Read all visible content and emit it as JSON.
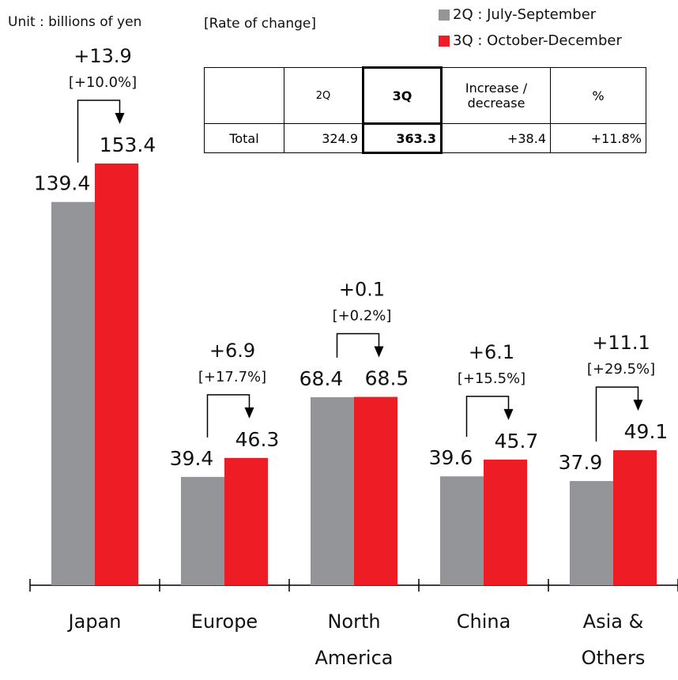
{
  "chart_data": {
    "type": "bar",
    "unit": "Unit : billions of yen",
    "rate_note": "[Rate of change]",
    "categories": [
      "Japan",
      "Europe",
      "North America",
      "China",
      "Asia & Others"
    ],
    "series": [
      {
        "name": "2Q : July-September",
        "color": "#939598",
        "values": [
          139.4,
          39.4,
          68.4,
          39.6,
          37.9
        ]
      },
      {
        "name": "3Q : October-December",
        "color": "#ee1c25",
        "values": [
          153.4,
          46.3,
          68.5,
          45.7,
          49.1
        ]
      }
    ],
    "annotations": [
      {
        "change": "+13.9",
        "rate": "[+10.0%]"
      },
      {
        "change": "+6.9",
        "rate": "[+17.7%]"
      },
      {
        "change": "+0.1",
        "rate": "[+0.2%]"
      },
      {
        "change": "+6.1",
        "rate": "[+15.5%]"
      },
      {
        "change": "+11.1",
        "rate": "[+29.5%]"
      }
    ],
    "table": {
      "columns": [
        "2Q",
        "3Q",
        "Increase / decrease",
        "%"
      ],
      "row_label": "Total",
      "row": [
        "324.9",
        "363.3",
        "+38.4",
        "+11.8%"
      ]
    }
  }
}
